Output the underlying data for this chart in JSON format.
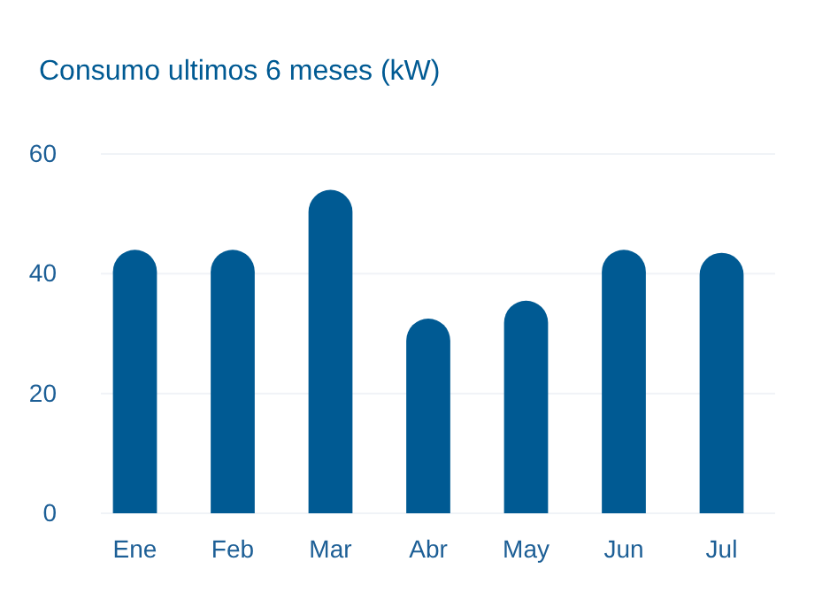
{
  "chart_data": {
    "type": "bar",
    "title": "Consumo ultimos 6 meses  (kW)",
    "categories": [
      "Ene",
      "Feb",
      "Mar",
      "Abr",
      "May",
      "Jun",
      "Jul"
    ],
    "values": [
      44,
      44,
      54,
      32.5,
      35.5,
      44,
      43.5
    ],
    "color": "#005a93",
    "ylim": [
      0,
      60
    ],
    "yticks": [
      0,
      20,
      40,
      60
    ],
    "grid": true
  }
}
